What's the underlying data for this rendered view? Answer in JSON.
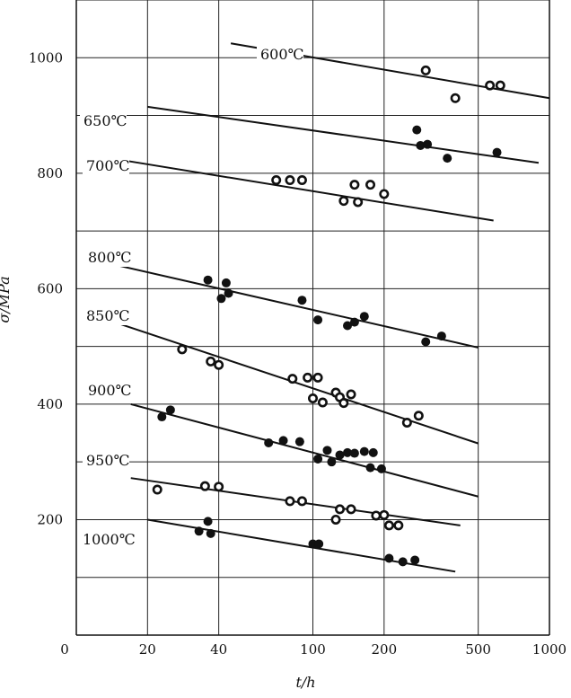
{
  "chart_data": {
    "type": "scatter",
    "title": "",
    "xlabel": "t/h",
    "ylabel": "σ/MPa",
    "x_scale": "log",
    "xlim": [
      10,
      1000
    ],
    "ylim": [
      0,
      1100
    ],
    "x_ticks": [
      "20",
      "40",
      "100",
      "200",
      "500",
      "1000"
    ],
    "x_origin_label": "0",
    "y_ticks": [
      "200",
      "400",
      "600",
      "800",
      "1000"
    ],
    "grid": true,
    "series": [
      {
        "name": "600℃",
        "marker": "open",
        "points": [
          [
            300,
            978
          ],
          [
            400,
            930
          ],
          [
            560,
            952
          ],
          [
            620,
            952
          ]
        ],
        "fit": [
          [
            45,
            1025
          ],
          [
            1000,
            930
          ]
        ]
      },
      {
        "name": "650℃",
        "marker": "filled",
        "points": [
          [
            275,
            875
          ],
          [
            285,
            848
          ],
          [
            305,
            850
          ],
          [
            370,
            826
          ],
          [
            600,
            836
          ]
        ],
        "fit": [
          [
            20,
            915
          ],
          [
            900,
            818
          ]
        ]
      },
      {
        "name": "700℃",
        "marker": "open",
        "points": [
          [
            70,
            788
          ],
          [
            80,
            788
          ],
          [
            90,
            788
          ],
          [
            135,
            752
          ],
          [
            150,
            780
          ],
          [
            155,
            750
          ],
          [
            175,
            780
          ],
          [
            200,
            764
          ]
        ],
        "fit": [
          [
            16,
            822
          ],
          [
            580,
            718
          ]
        ]
      },
      {
        "name": "800℃",
        "marker": "filled",
        "points": [
          [
            36,
            615
          ],
          [
            41,
            583
          ],
          [
            43,
            610
          ],
          [
            44,
            592
          ],
          [
            90,
            580
          ],
          [
            105,
            546
          ],
          [
            140,
            536
          ],
          [
            150,
            542
          ],
          [
            165,
            552
          ],
          [
            300,
            508
          ],
          [
            350,
            518
          ]
        ],
        "fit": [
          [
            13,
            646
          ],
          [
            500,
            498
          ]
        ]
      },
      {
        "name": "850℃",
        "marker": "open",
        "points": [
          [
            28,
            495
          ],
          [
            37,
            474
          ],
          [
            40,
            468
          ],
          [
            82,
            444
          ],
          [
            95,
            446
          ],
          [
            100,
            410
          ],
          [
            105,
            446
          ],
          [
            110,
            403
          ],
          [
            125,
            420
          ],
          [
            130,
            412
          ],
          [
            135,
            402
          ],
          [
            145,
            417
          ],
          [
            250,
            368
          ],
          [
            280,
            380
          ]
        ],
        "fit": [
          [
            15,
            540
          ],
          [
            500,
            332
          ]
        ]
      },
      {
        "name": "900℃",
        "marker": "filled",
        "points": [
          [
            23,
            378
          ],
          [
            25,
            390
          ],
          [
            65,
            333
          ],
          [
            75,
            337
          ],
          [
            88,
            335
          ],
          [
            105,
            305
          ],
          [
            115,
            320
          ],
          [
            120,
            300
          ],
          [
            130,
            312
          ],
          [
            140,
            316
          ],
          [
            150,
            315
          ],
          [
            165,
            318
          ],
          [
            175,
            290
          ],
          [
            180,
            316
          ],
          [
            195,
            288
          ]
        ],
        "fit": [
          [
            17,
            400
          ],
          [
            500,
            240
          ]
        ]
      },
      {
        "name": "950℃",
        "marker": "open",
        "points": [
          [
            22,
            252
          ],
          [
            35,
            258
          ],
          [
            40,
            257
          ],
          [
            80,
            232
          ],
          [
            90,
            232
          ],
          [
            125,
            200
          ],
          [
            130,
            218
          ],
          [
            145,
            218
          ],
          [
            185,
            207
          ],
          [
            200,
            208
          ],
          [
            210,
            190
          ],
          [
            230,
            190
          ]
        ],
        "fit": [
          [
            17,
            272
          ],
          [
            420,
            190
          ]
        ]
      },
      {
        "name": "1000℃",
        "marker": "filled",
        "points": [
          [
            33,
            180
          ],
          [
            36,
            197
          ],
          [
            37,
            176
          ],
          [
            100,
            158
          ],
          [
            106,
            158
          ],
          [
            210,
            133
          ],
          [
            240,
            127
          ],
          [
            270,
            130
          ]
        ],
        "fit": [
          [
            20,
            200
          ],
          [
            400,
            110
          ]
        ]
      }
    ]
  }
}
